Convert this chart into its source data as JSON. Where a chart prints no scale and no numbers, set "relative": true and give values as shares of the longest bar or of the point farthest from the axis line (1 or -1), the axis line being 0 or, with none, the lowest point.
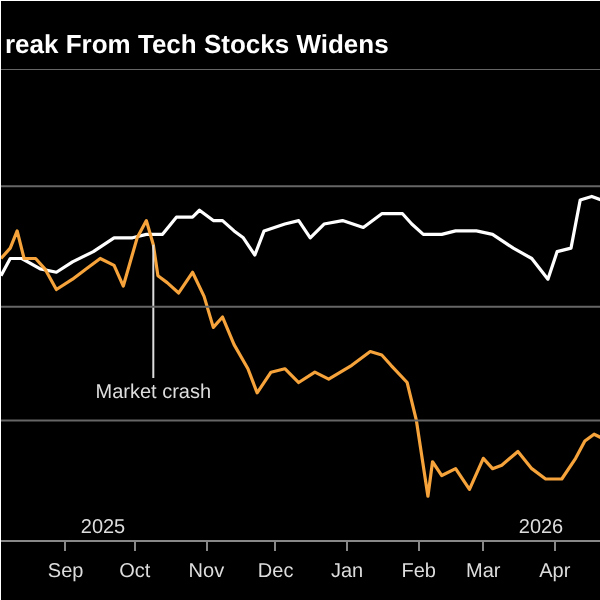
{
  "chart_data": {
    "type": "line",
    "title": "reak From Tech Stocks Widens",
    "relative": true,
    "line_style": "solid",
    "marker": "none",
    "xlim": [
      "2025-08-04",
      "2026-04-21"
    ],
    "xticks": [
      {
        "value": "2025-09-01",
        "label": "Sep"
      },
      {
        "value": "2025-10-01",
        "label": "Oct"
      },
      {
        "value": "2025-11-01",
        "label": "Nov"
      },
      {
        "value": "2025-12-01",
        "label": "Dec"
      },
      {
        "value": "2026-01-01",
        "label": "Jan"
      },
      {
        "value": "2026-02-01",
        "label": "Feb"
      },
      {
        "value": "2026-03-01",
        "label": "Mar"
      },
      {
        "value": "2026-04-01",
        "label": "Apr"
      }
    ],
    "ref_lines": [
      {
        "axis": "y",
        "value": 0.35,
        "color": "#666666"
      },
      {
        "axis": "y",
        "value": 0.68,
        "color": "#666666"
      },
      {
        "axis": "y",
        "value": 1.03,
        "color": "#666666"
      },
      {
        "axis": "y",
        "value": 1.37,
        "color": "#666666"
      }
    ],
    "annotations": [
      {
        "text": "Market crash",
        "x": "2025-10-09",
        "y": 0.86
      },
      "2025",
      "2026"
    ],
    "series": [
      {
        "color": "#ffffff",
        "x": [
          "2025-08-04",
          "2025-08-08",
          "2025-08-13",
          "2025-08-21",
          "2025-08-28",
          "2025-09-04",
          "2025-09-13",
          "2025-09-22",
          "2025-09-30",
          "2025-10-06",
          "2025-10-13",
          "2025-10-19",
          "2025-10-26",
          "2025-10-29",
          "2025-11-04",
          "2025-11-08",
          "2025-11-13",
          "2025-11-17",
          "2025-11-22",
          "2025-11-26",
          "2025-12-05",
          "2025-12-11",
          "2025-12-16",
          "2025-12-22",
          "2025-12-30",
          "2026-01-08",
          "2026-01-16",
          "2026-01-25",
          "2026-01-29",
          "2026-02-03",
          "2026-02-11",
          "2026-02-17",
          "2026-02-26",
          "2026-03-05",
          "2026-03-14",
          "2026-03-22",
          "2026-03-29",
          "2026-04-02",
          "2026-04-08",
          "2026-04-12",
          "2026-04-17",
          "2026-04-21"
        ],
        "values": [
          0.77,
          0.82,
          0.82,
          0.79,
          0.78,
          0.81,
          0.84,
          0.88,
          0.88,
          0.89,
          0.89,
          0.94,
          0.94,
          0.96,
          0.93,
          0.93,
          0.9,
          0.88,
          0.83,
          0.9,
          0.92,
          0.93,
          0.88,
          0.92,
          0.93,
          0.91,
          0.95,
          0.95,
          0.92,
          0.89,
          0.89,
          0.9,
          0.9,
          0.89,
          0.85,
          0.82,
          0.76,
          0.84,
          0.85,
          0.99,
          1,
          0.99
        ]
      },
      {
        "color": "#f5a33a",
        "x": [
          "2025-08-04",
          "2025-08-08",
          "2025-08-11",
          "2025-08-14",
          "2025-08-19",
          "2025-08-23",
          "2025-08-28",
          "2025-09-04",
          "2025-09-10",
          "2025-09-16",
          "2025-09-22",
          "2025-09-26",
          "2025-10-02",
          "2025-10-06",
          "2025-10-09",
          "2025-10-11",
          "2025-10-15",
          "2025-10-20",
          "2025-10-26",
          "2025-10-31",
          "2025-11-04",
          "2025-11-08",
          "2025-11-13",
          "2025-11-19",
          "2025-11-23",
          "2025-11-29",
          "2025-12-05",
          "2025-12-11",
          "2025-12-18",
          "2025-12-24",
          "2026-01-03",
          "2026-01-11",
          "2026-01-16",
          "2026-01-20",
          "2026-01-27",
          "2026-01-31",
          "2026-02-05",
          "2026-02-07",
          "2026-02-11",
          "2026-02-17",
          "2026-02-23",
          "2026-03-01",
          "2026-03-05",
          "2026-03-09",
          "2026-03-16",
          "2026-03-22",
          "2026-03-28",
          "2026-04-04",
          "2026-04-10",
          "2026-04-14",
          "2026-04-18",
          "2026-04-21"
        ],
        "values": [
          0.82,
          0.85,
          0.9,
          0.82,
          0.82,
          0.79,
          0.73,
          0.76,
          0.79,
          0.82,
          0.8,
          0.74,
          0.88,
          0.93,
          0.86,
          0.77,
          0.75,
          0.72,
          0.78,
          0.71,
          0.62,
          0.65,
          0.57,
          0.5,
          0.43,
          0.49,
          0.5,
          0.46,
          0.49,
          0.47,
          0.51,
          0.55,
          0.54,
          0.51,
          0.46,
          0.35,
          0.13,
          0.23,
          0.19,
          0.21,
          0.15,
          0.24,
          0.21,
          0.22,
          0.26,
          0.21,
          0.18,
          0.18,
          0.24,
          0.29,
          0.31,
          0.3
        ]
      }
    ]
  }
}
